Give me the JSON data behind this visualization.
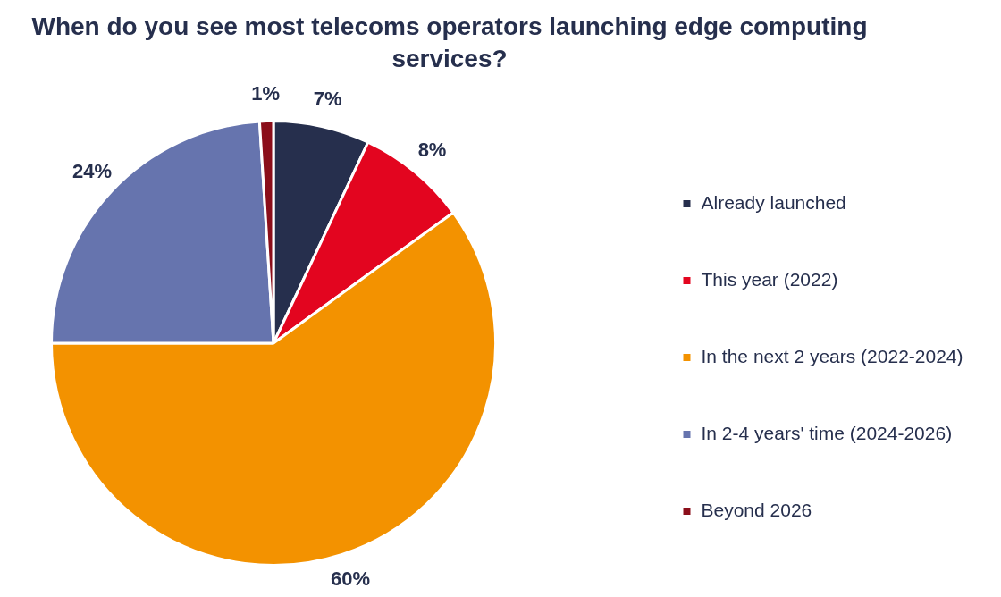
{
  "chart_data": {
    "type": "pie",
    "title": "When do you see most telecoms operators launching edge computing services?",
    "categories": [
      "Already launched",
      "This year (2022)",
      "In the next 2 years (2022-2024)",
      "In 2-4 years' time (2024-2026)",
      "Beyond 2026"
    ],
    "values": [
      7,
      8,
      60,
      24,
      1
    ],
    "colors": [
      "#262f4d",
      "#e3051f",
      "#f39200",
      "#6674ae",
      "#8b0e1a"
    ],
    "value_labels": [
      "7%",
      "8%",
      "60%",
      "24%",
      "1%"
    ],
    "legend": "right"
  }
}
